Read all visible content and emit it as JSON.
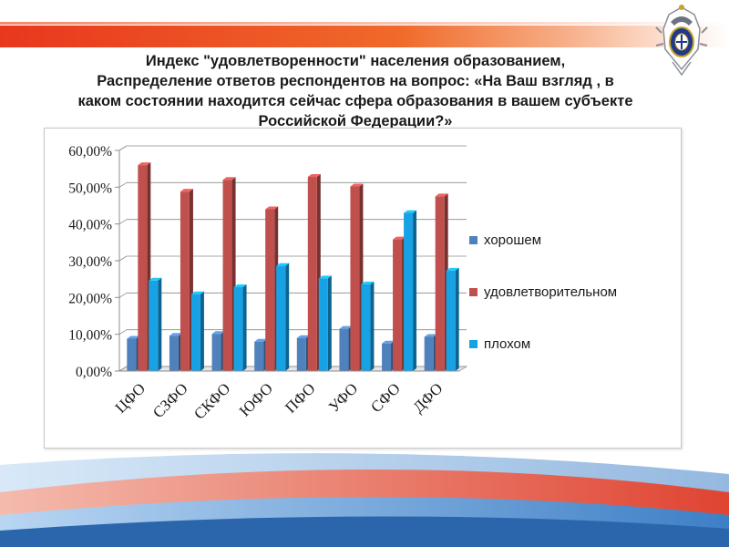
{
  "title_lines": [
    "Индекс \"удовлетворенности\" населения образованием,",
    "Распределение ответов респондентов на вопрос: «На Ваш взгляд , в",
    "каком состоянии находится сейчас сфера образования в вашем субъекте",
    "Российской Федерации?»"
  ],
  "colors": {
    "accent_red": "#e8371e",
    "series_good": "#4f81bd",
    "series_ok": "#c0504d",
    "series_bad": "#17a2e6"
  },
  "chart_data": {
    "type": "bar",
    "categories": [
      "ЦФО",
      "СЗФО",
      "СКФО",
      "ЮФО",
      "ПФО",
      "УФО",
      "СФО",
      "ДФО"
    ],
    "series": [
      {
        "name": "хорошем",
        "values": [
          8.8,
          9.6,
          10.1,
          8.0,
          9.0,
          11.5,
          7.5,
          9.3
        ]
      },
      {
        "name": "удовлетворительном",
        "values": [
          56.0,
          48.8,
          52.0,
          44.0,
          52.8,
          50.2,
          35.8,
          47.5
        ]
      },
      {
        "name": "плохом",
        "values": [
          24.6,
          20.9,
          22.8,
          28.6,
          25.2,
          23.6,
          43.0,
          27.3
        ]
      }
    ],
    "ylim": [
      0,
      60
    ],
    "yticks": [
      "0,00%",
      "10,00%",
      "20,00%",
      "30,00%",
      "40,00%",
      "50,00%",
      "60,00%"
    ],
    "grid": true,
    "legend": "right",
    "style": "3d-bars"
  }
}
